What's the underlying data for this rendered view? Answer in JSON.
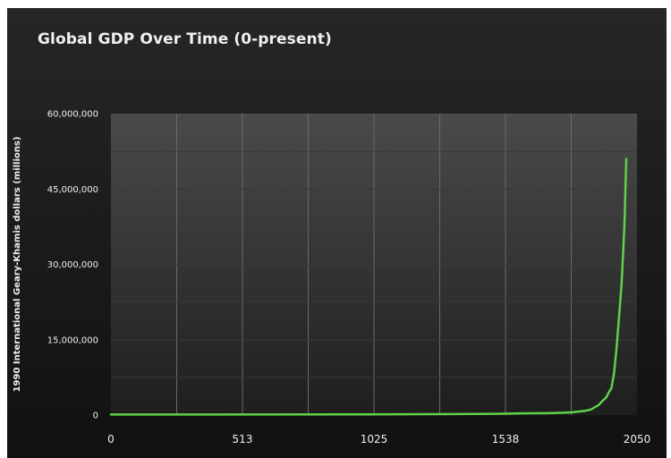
{
  "chart_data": {
    "type": "line",
    "title": "Global GDP Over Time (0-present)",
    "xlabel": "",
    "ylabel": "1990 International Geary-Khamis dollars (millions)",
    "xlim": [
      0,
      2050
    ],
    "ylim": [
      0,
      60000000
    ],
    "x_ticks": [
      "0",
      "513",
      "1025",
      "1538",
      "2050"
    ],
    "y_ticks": [
      "0",
      "15,000,000",
      "30,000,000",
      "45,000,000",
      "60,000,000"
    ],
    "grid": true,
    "legend": "none",
    "line_color": "#5fd14a",
    "series": [
      {
        "x": [
          0,
          1000,
          1500,
          1600,
          1700,
          1750,
          1800,
          1820,
          1850,
          1870,
          1900,
          1913,
          1930,
          1940,
          1950,
          1960,
          1970,
          1980,
          1990,
          2000,
          2003,
          2008
        ],
        "values": [
          105000,
          121000,
          248000,
          331000,
          371000,
          440000,
          560000,
          694000,
          850000,
          1100000,
          1970000,
          2700000,
          3500000,
          4500000,
          5300000,
          8100000,
          13200000,
          19500000,
          26200000,
          36700000,
          41000000,
          51000000
        ]
      }
    ]
  }
}
